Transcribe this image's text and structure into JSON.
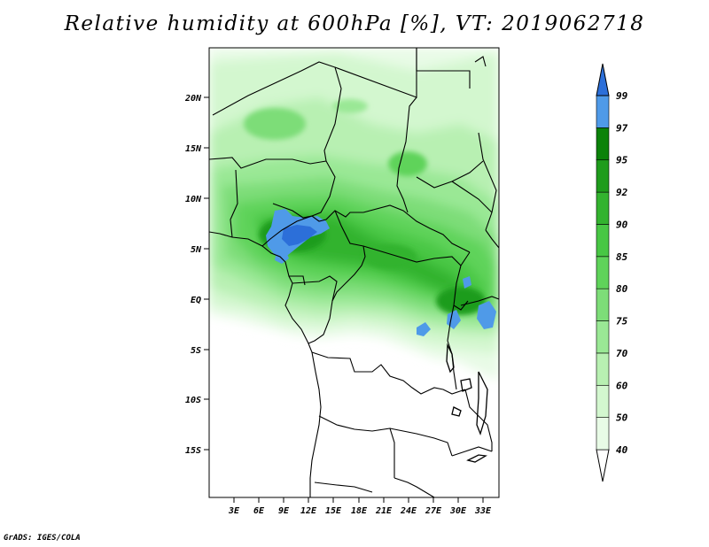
{
  "title": "Relative humidity at 600hPa [%], VT: 2019062718",
  "credit": "GrADS: IGES/COLA",
  "map": {
    "lon_range": [
      0,
      36
    ],
    "lat_range": [
      -20,
      25
    ],
    "lon_ticks": [
      "3E",
      "6E",
      "9E",
      "12E",
      "15E",
      "18E",
      "21E",
      "24E",
      "27E",
      "30E",
      "33E"
    ],
    "lat_ticks": [
      "20N",
      "15N",
      "10N",
      "5N",
      "EQ",
      "5S",
      "10S",
      "15S"
    ]
  },
  "colorbar": {
    "levels": [
      "40",
      "50",
      "60",
      "70",
      "75",
      "80",
      "85",
      "90",
      "92",
      "95",
      "97",
      "99"
    ],
    "colors": [
      "#e8fbe6",
      "#d3f7cf",
      "#b8f0b2",
      "#9ae895",
      "#7ddd78",
      "#5fd35a",
      "#48c744",
      "#33b32f",
      "#1f9c1c",
      "#0b8209",
      "#4f9ae8",
      "#2c6fd9",
      "#1c4ec0"
    ]
  }
}
